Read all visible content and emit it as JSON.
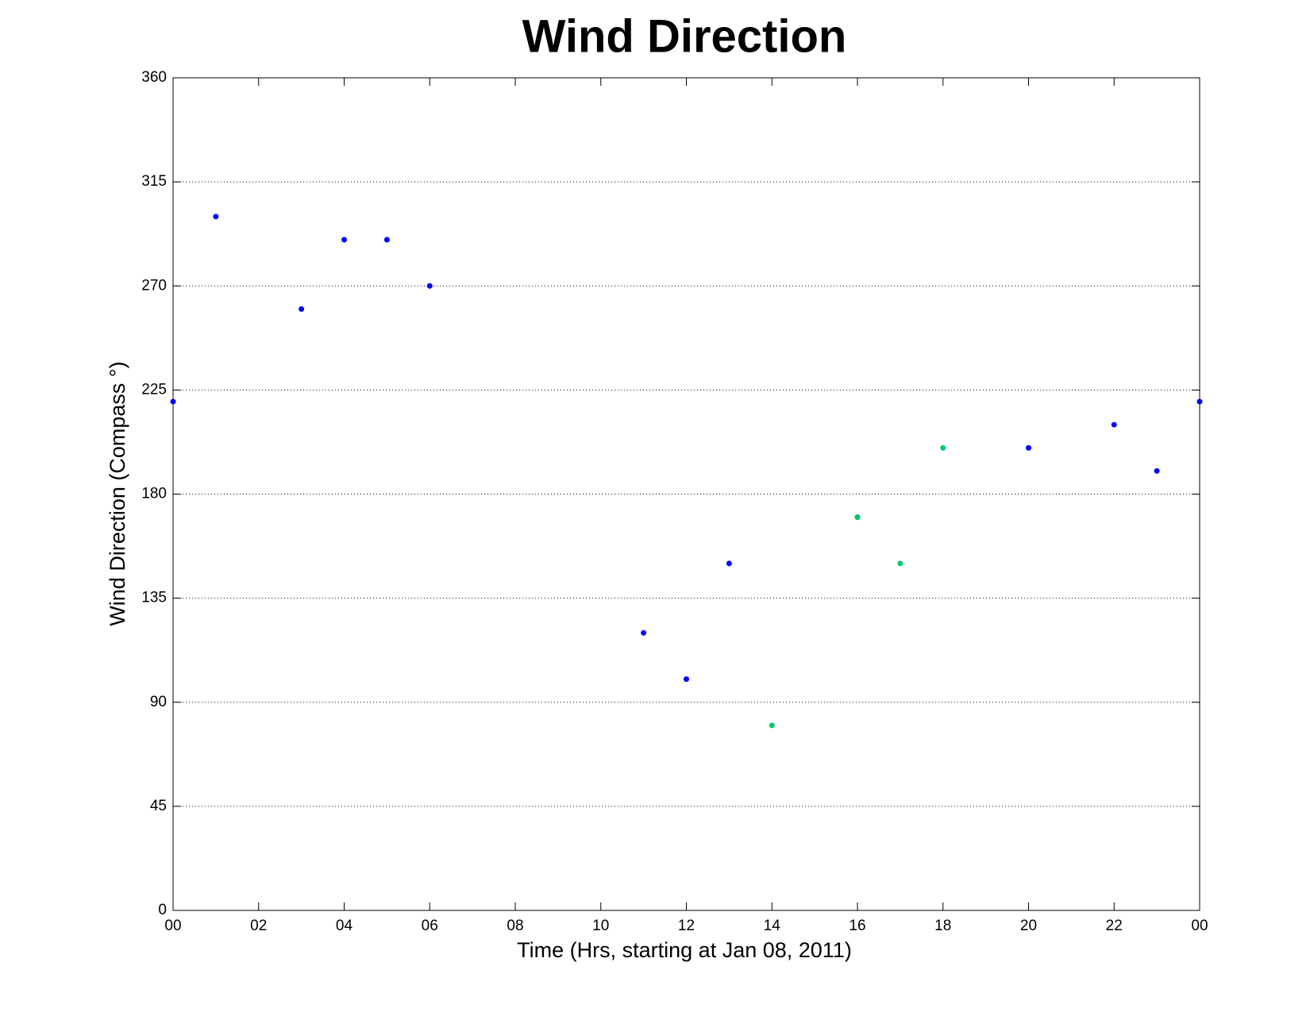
{
  "chart_data": {
    "type": "scatter",
    "title": "Wind Direction",
    "x_label": "Time (Hrs, starting at Jan 08, 2011)",
    "y_label": "Wind Direction (Compass °)",
    "xlim": [
      0,
      24
    ],
    "xticks": [
      {
        "value": 0,
        "label": "00"
      },
      {
        "value": 2,
        "label": "02"
      },
      {
        "value": 4,
        "label": "04"
      },
      {
        "value": 6,
        "label": "06"
      },
      {
        "value": 8,
        "label": "08"
      },
      10,
      12,
      14,
      16,
      18,
      20,
      22,
      {
        "value": 24,
        "label": "00"
      }
    ],
    "ylim": [
      0,
      360
    ],
    "yticks": [
      0,
      45,
      90,
      135,
      180,
      225,
      270,
      315,
      360
    ],
    "grid": true,
    "series": [
      {
        "color": "#0000ff",
        "x": [
          0,
          1,
          3,
          4,
          5,
          6,
          11,
          12,
          13,
          16,
          20,
          22,
          23,
          24
        ],
        "values": [
          220,
          300,
          260,
          290,
          290,
          270,
          120,
          100,
          150,
          170,
          200,
          210,
          190,
          220
        ]
      },
      {
        "color": "#00cc66",
        "x": [
          14,
          16,
          17,
          18
        ],
        "values": [
          80,
          170,
          150,
          200
        ]
      }
    ]
  }
}
